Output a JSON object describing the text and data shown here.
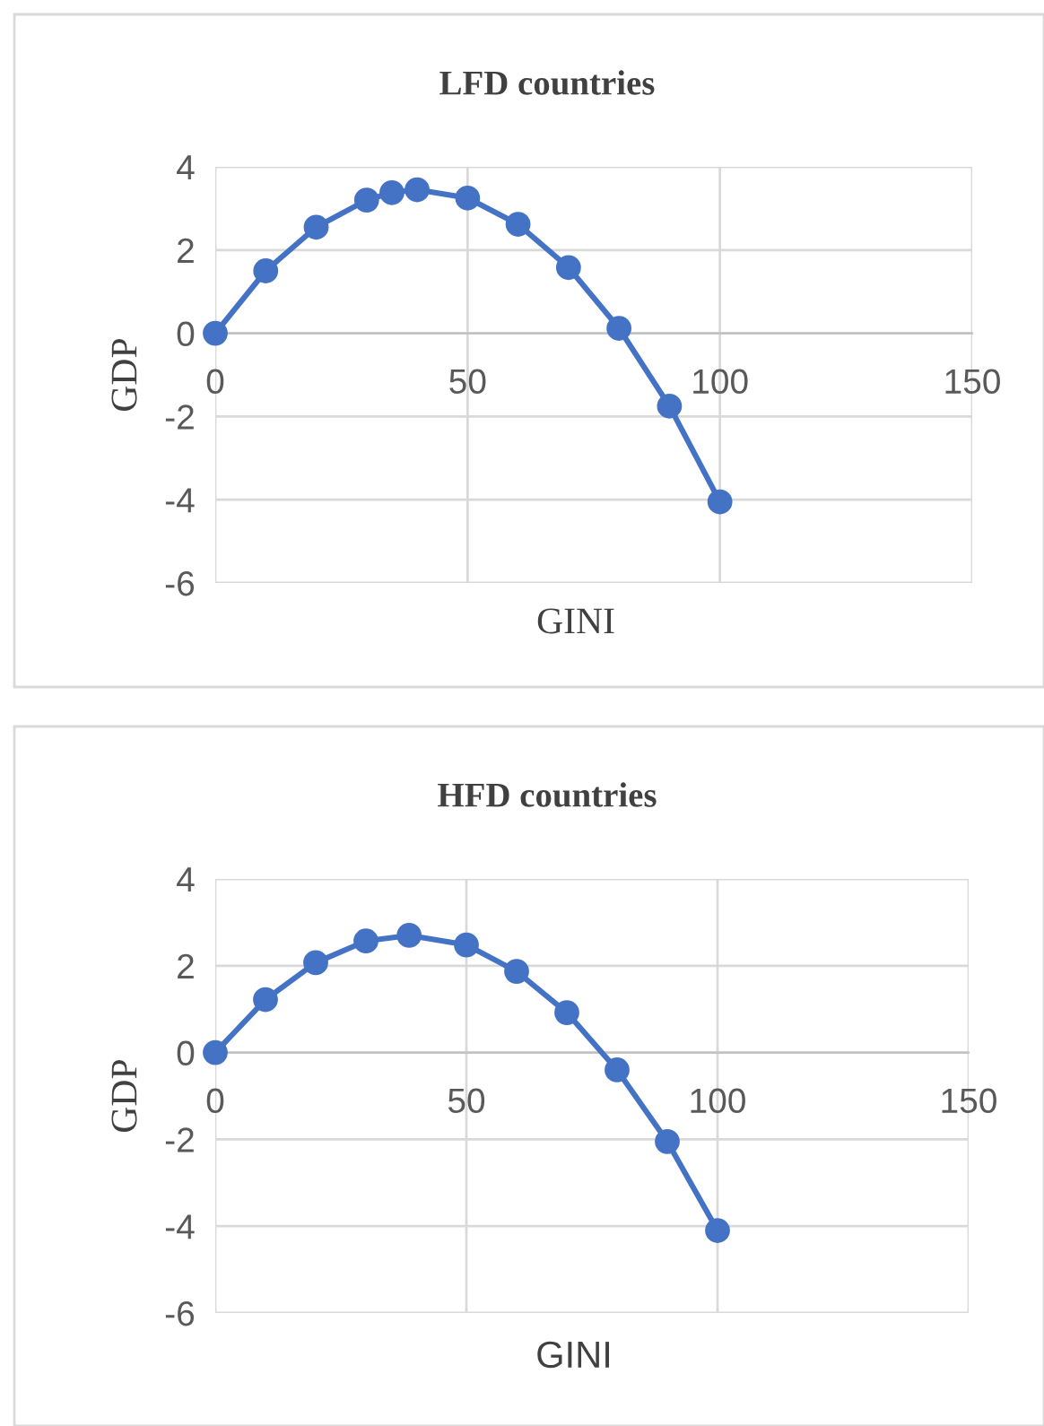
{
  "chart_data": [
    {
      "type": "line",
      "title": "LFD countries",
      "xlabel": "GINI",
      "ylabel": "GDP",
      "marker": "circle",
      "line_style": "solid",
      "grid": true,
      "legend": false,
      "xlim": [
        0,
        150
      ],
      "xticks": [
        0,
        50,
        100,
        150
      ],
      "ylim": [
        -6,
        4
      ],
      "yticks": [
        -6,
        -4,
        -2,
        0,
        2,
        4
      ],
      "series": [
        {
          "color": "#4472c4",
          "x": [
            0,
            10,
            20,
            30,
            35,
            40,
            50,
            60,
            70,
            80,
            90,
            100
          ],
          "values": [
            0,
            1.5,
            2.55,
            3.2,
            3.38,
            3.45,
            3.25,
            2.62,
            1.58,
            0.12,
            -1.75,
            -4.05
          ]
        }
      ]
    },
    {
      "type": "line",
      "title": "HFD countries",
      "xlabel": "GINI",
      "ylabel": "GDP",
      "marker": "circle",
      "line_style": "solid",
      "grid": true,
      "legend": false,
      "xlim": [
        0,
        150
      ],
      "xticks": [
        0,
        50,
        100,
        150
      ],
      "ylim": [
        -6,
        4
      ],
      "yticks": [
        -6,
        -4,
        -2,
        0,
        2,
        4
      ],
      "series": [
        {
          "color": "#4472c4",
          "x": [
            0,
            10,
            20,
            30,
            38.6,
            50,
            60,
            70,
            80,
            90,
            100
          ],
          "values": [
            0,
            1.22,
            2.07,
            2.57,
            2.7,
            2.48,
            1.87,
            0.92,
            -0.4,
            -2.05,
            -4.1
          ]
        }
      ]
    }
  ]
}
